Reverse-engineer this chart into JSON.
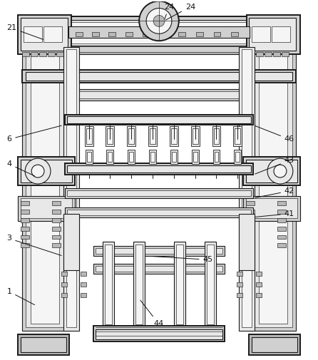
{
  "bg": "#ffffff",
  "lc": "#1a1a1a",
  "fc_light": "#e8e8e8",
  "fc_mid": "#d0d0d0",
  "fc_dark": "#b8b8b8",
  "fc_white": "#f5f5f5",
  "lw": 0.8,
  "lwt": 1.4,
  "lwth": 0.45,
  "fig_w": 4.46,
  "fig_h": 5.05,
  "dpi": 100
}
